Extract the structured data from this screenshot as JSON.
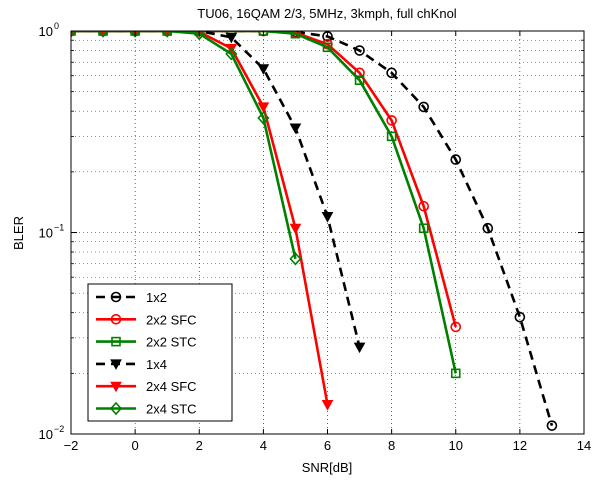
{
  "chart_data": {
    "type": "line",
    "title": "TU06, 16QAM 2/3, 5MHz, 3kmph, full chKnol",
    "xlabel": "SNR[dB]",
    "ylabel": "BLER",
    "xlim": [
      -2,
      14
    ],
    "ylim": [
      0.01,
      1
    ],
    "yscale": "log",
    "xticks": [
      "−2",
      "0",
      "2",
      "4",
      "6",
      "8",
      "10",
      "12",
      "14"
    ],
    "yticks": [
      {
        "base": "10",
        "exp": "0"
      },
      {
        "base": "10",
        "exp": "−1"
      },
      {
        "base": "10",
        "exp": "−2"
      }
    ],
    "grid": "dotted",
    "legend_position": "bottom-left",
    "series": [
      {
        "name": "1x2",
        "color": "#000000",
        "dash": "dashed",
        "marker": "circle",
        "x": [
          -2,
          -1,
          0,
          1,
          2,
          3,
          4,
          5,
          6,
          7,
          8,
          9,
          10,
          11,
          12,
          13
        ],
        "y": [
          1,
          1,
          1,
          1,
          1,
          1,
          1,
          0.99,
          0.94,
          0.8,
          0.62,
          0.42,
          0.23,
          0.105,
          0.038,
          0.011
        ]
      },
      {
        "name": "2x2 SFC",
        "color": "#ff0000",
        "dash": "solid",
        "marker": "circle",
        "x": [
          -2,
          -1,
          0,
          1,
          2,
          3,
          4,
          5,
          6,
          7,
          8,
          9,
          10
        ],
        "y": [
          1,
          1,
          1,
          1,
          1,
          1,
          1,
          0.98,
          0.86,
          0.62,
          0.36,
          0.135,
          0.034
        ]
      },
      {
        "name": "2x2 STC",
        "color": "#008000",
        "dash": "solid",
        "marker": "square",
        "x": [
          -2,
          -1,
          0,
          1,
          2,
          3,
          4,
          5,
          6,
          7,
          8,
          9,
          10
        ],
        "y": [
          1,
          1,
          1,
          1,
          1,
          1,
          1,
          0.97,
          0.83,
          0.57,
          0.3,
          0.105,
          0.02
        ]
      },
      {
        "name": "1x4",
        "color": "#000000",
        "dash": "dashed",
        "marker": "triangle-down",
        "x": [
          -2,
          -1,
          0,
          1,
          2,
          3,
          4,
          5,
          6,
          7
        ],
        "y": [
          1,
          1,
          1,
          1,
          1,
          0.93,
          0.65,
          0.33,
          0.12,
          0.027
        ]
      },
      {
        "name": "2x4 SFC",
        "color": "#ff0000",
        "dash": "solid",
        "marker": "triangle-down",
        "x": [
          -2,
          -1,
          0,
          1,
          2,
          3,
          4,
          5,
          6
        ],
        "y": [
          1,
          1,
          1,
          1,
          0.99,
          0.82,
          0.42,
          0.105,
          0.014
        ]
      },
      {
        "name": "2x4 STC",
        "color": "#008000",
        "dash": "solid",
        "marker": "diamond",
        "x": [
          -2,
          -1,
          0,
          1,
          2,
          3,
          4,
          5
        ],
        "y": [
          1,
          1,
          1,
          1,
          0.97,
          0.77,
          0.37,
          0.074
        ]
      }
    ]
  }
}
